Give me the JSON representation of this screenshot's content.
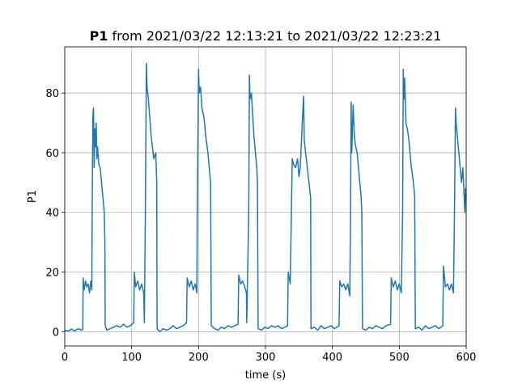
{
  "chart_data": {
    "type": "line",
    "title": {
      "variable": "P1",
      "text": "from 2021/03/22 12:13:21 to 2021/03/22 12:23:21"
    },
    "x_label": "time (s)",
    "y_label": "P1",
    "x": [
      0,
      5,
      10,
      15,
      20,
      25,
      27,
      27.5,
      29,
      31,
      33,
      35,
      37,
      39,
      40.5,
      41,
      42,
      43,
      44,
      45,
      46,
      47,
      48,
      49,
      51,
      53,
      55,
      57,
      59,
      60,
      60.5,
      63,
      68,
      73,
      78,
      83,
      88,
      93,
      98,
      103,
      104,
      106,
      109,
      112,
      115,
      118,
      119,
      120.5,
      122,
      123,
      125,
      127,
      129,
      131,
      133,
      136,
      137.5,
      138,
      142,
      147,
      152,
      157,
      162,
      167,
      172,
      177,
      182,
      183,
      186,
      189,
      192,
      195,
      197.5,
      198,
      200,
      201,
      203,
      205,
      208,
      211,
      214,
      216,
      218,
      219,
      224,
      229,
      234,
      239,
      244,
      249,
      254,
      259,
      260,
      263,
      266,
      269,
      271.5,
      272,
      275,
      276,
      277,
      279,
      281,
      283,
      285,
      287,
      288,
      289,
      294,
      299,
      304,
      309,
      314,
      319,
      324,
      329,
      333,
      334,
      337,
      340,
      342,
      345,
      348,
      350,
      352,
      355,
      357,
      358,
      360,
      362,
      364,
      366,
      367.5,
      368,
      373,
      378,
      383,
      388,
      393,
      398,
      403,
      410,
      411,
      414,
      417,
      420,
      423,
      426,
      427,
      428,
      429,
      431,
      433,
      435,
      437,
      439,
      441,
      443,
      444,
      445,
      450,
      455,
      460,
      465,
      470,
      475,
      480,
      487,
      488,
      491,
      494,
      497,
      500,
      503,
      505,
      506,
      507,
      508,
      510,
      512,
      514,
      516,
      518,
      520,
      522,
      523,
      524,
      529,
      534,
      539,
      544,
      549,
      554,
      559,
      565,
      566,
      569,
      572,
      575,
      578,
      581,
      582.5,
      584,
      585,
      587,
      589,
      591,
      593,
      595,
      597,
      598,
      599,
      600
    ],
    "series": [
      {
        "name": "P1",
        "color": "#1f77b4",
        "values": [
          0.5,
          0.2,
          0.8,
          0.3,
          1.0,
          0.5,
          1,
          18,
          14,
          17,
          15,
          16,
          13,
          17,
          14,
          40,
          72,
          75,
          55,
          68,
          62,
          70,
          58,
          62,
          56,
          55,
          50,
          45,
          40,
          30,
          2,
          0.5,
          1,
          1.5,
          2,
          1.5,
          2.5,
          1.5,
          2,
          3,
          20,
          15,
          17,
          14,
          16,
          13,
          3,
          40,
          90,
          82,
          78,
          72,
          66,
          62,
          58,
          60,
          50,
          1,
          0,
          1,
          0.5,
          1,
          2,
          1,
          1.5,
          2,
          3,
          18,
          15,
          17,
          14,
          16,
          13,
          40,
          88,
          80,
          82,
          75,
          72,
          65,
          60,
          55,
          50,
          2,
          1,
          0.5,
          1.5,
          1,
          2,
          1.5,
          2,
          2.5,
          19,
          16,
          17,
          15,
          13,
          3,
          40,
          86,
          78,
          80,
          72,
          65,
          60,
          55,
          50,
          1,
          0.5,
          1.5,
          1,
          2,
          1.5,
          2,
          1,
          1.5,
          2,
          20,
          16,
          58,
          56,
          55,
          58,
          52,
          55,
          70,
          79,
          64,
          60,
          56,
          52,
          48,
          45,
          1,
          1.5,
          0.5,
          2,
          1,
          1.5,
          2,
          1,
          2,
          17,
          15,
          16,
          14,
          16,
          12,
          35,
          77,
          60,
          76,
          65,
          62,
          60,
          55,
          50,
          45,
          40,
          1,
          0.5,
          1.5,
          1,
          2,
          1.5,
          1,
          2,
          2.5,
          18,
          15,
          17,
          14,
          16,
          13,
          40,
          88,
          78,
          85,
          70,
          68,
          65,
          60,
          55,
          52,
          48,
          45,
          1,
          1.5,
          0.5,
          2,
          1,
          1.5,
          2,
          1,
          2,
          22,
          15,
          16,
          14,
          16,
          13,
          40,
          75,
          70,
          65,
          60,
          55,
          50,
          55,
          45,
          40,
          48,
          45
        ]
      }
    ],
    "xlim": [
      0,
      600
    ],
    "ylim": [
      -4.8,
      95.5
    ],
    "xticks": [
      0,
      100,
      200,
      300,
      400,
      500,
      600
    ],
    "yticks": [
      0,
      20,
      40,
      60,
      80
    ],
    "grid": true
  }
}
